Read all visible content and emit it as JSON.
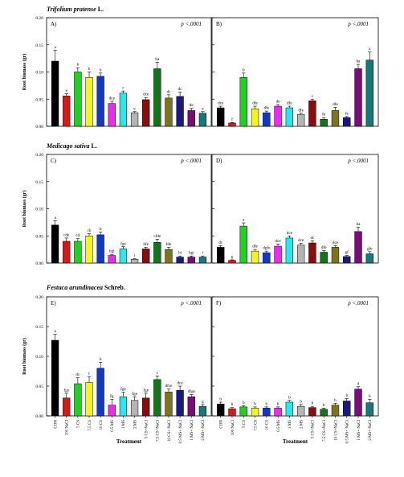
{
  "chart_data": [
    {
      "type": "bar",
      "panel": "A)",
      "species": "Trifolium pratense",
      "authority": "L.",
      "pvalue": "p <.0001",
      "ylabel": "Root biomass (gr)",
      "ylim": [
        0,
        0.2
      ],
      "yticks": [
        "0.00",
        "0.05",
        "0.10",
        "0.15",
        "0.20"
      ],
      "categories": [
        "CON",
        "100 NaCl",
        "5 CS",
        "7.5 CS",
        "10 CS",
        "0.5 MS",
        "1 MS",
        "2 MS",
        "5 CS+NaCl",
        "7.5 CS+NaCl",
        "10 CS+NaCl",
        "0.5 MS+NaCl",
        "1 MS+NaCl",
        "2 MS+NaCl"
      ],
      "values": [
        0.12,
        0.056,
        0.1,
        0.09,
        0.092,
        0.042,
        0.061,
        0.025,
        0.049,
        0.106,
        0.052,
        0.055,
        0.029,
        0.024
      ],
      "errors": [
        0.02,
        0.004,
        0.008,
        0.01,
        0.006,
        0.004,
        0.004,
        0.002,
        0.004,
        0.012,
        0.006,
        0.008,
        0.004,
        0.003
      ],
      "letters": [
        "a",
        "e",
        "b",
        "b",
        "b",
        "dce",
        "c",
        "e",
        "dce",
        "ba",
        "dc",
        "dc",
        "de",
        "e"
      ],
      "colors": [
        "#000000",
        "#d61a1a",
        "#22d022",
        "#f4f41e",
        "#1238c8",
        "#ec2bec",
        "#2ee4ee",
        "#b4b4b4",
        "#8a0c0c",
        "#11761a",
        "#80741a",
        "#1a1a7e",
        "#7a0c7a",
        "#167878"
      ]
    },
    {
      "type": "bar",
      "panel": "B)",
      "pvalue": "p <.0001",
      "ylim": [
        0,
        0.2
      ],
      "categories": [
        "CON",
        "100 NaCl",
        "5 CS",
        "7.5 CS",
        "10 CS",
        "0.5 MS",
        "1 MS",
        "2 MS",
        "5 CS+NaCl",
        "7.5 CS+NaCl",
        "10 CS+NaCl",
        "0.5 MS+NaCl",
        "1 MS+NaCl",
        "2 MS+NaCl"
      ],
      "values": [
        0.034,
        0.006,
        0.09,
        0.032,
        0.025,
        0.037,
        0.034,
        0.022,
        0.047,
        0.013,
        0.029,
        0.016,
        0.106,
        0.122
      ],
      "errors": [
        0.003,
        0.001,
        0.008,
        0.005,
        0.003,
        0.003,
        0.003,
        0.002,
        0.003,
        0.003,
        0.006,
        0.002,
        0.008,
        0.015
      ],
      "letters": [
        "dce",
        "f",
        "b",
        "dfe",
        "dfe",
        "de",
        "dfe",
        "dfe",
        "c",
        "fe",
        "dfe",
        "fe",
        "ba",
        "a"
      ],
      "colors": [
        "#000000",
        "#d61a1a",
        "#22d022",
        "#f4f41e",
        "#1238c8",
        "#ec2bec",
        "#2ee4ee",
        "#b4b4b4",
        "#8a0c0c",
        "#11761a",
        "#80741a",
        "#1a1a7e",
        "#7a0c7a",
        "#167878"
      ]
    },
    {
      "type": "bar",
      "panel": "C)",
      "species": "Medicago sativa",
      "authority": "L.",
      "pvalue": "p <.0001",
      "ylabel": "Root biomass (gr)",
      "ylim": [
        0,
        0.2
      ],
      "yticks": [
        "0.00",
        "0.05",
        "0.10",
        "0.15",
        "0.20"
      ],
      "categories": [
        "CON",
        "100 NaCl",
        "5 CS",
        "7.5 CS",
        "10 CS",
        "0.5 MS",
        "1 MS",
        "2 MS",
        "5 CS+NaCl",
        "7.5 CS+NaCl",
        "10 CS+NaCl",
        "0.5 MS+NaCl",
        "1 MS+NaCl",
        "2 MS+NaCl"
      ],
      "values": [
        0.07,
        0.04,
        0.04,
        0.05,
        0.052,
        0.014,
        0.026,
        0.007,
        0.026,
        0.038,
        0.025,
        0.011,
        0.011,
        0.011
      ],
      "errors": [
        0.008,
        0.006,
        0.005,
        0.004,
        0.005,
        0.002,
        0.004,
        0.001,
        0.003,
        0.006,
        0.004,
        0.002,
        0.002,
        0.002
      ],
      "letters": [
        "a",
        "cde",
        "cd",
        "cb",
        "b",
        "hgi",
        "fge",
        "i",
        "hfe",
        "cfde",
        "fde",
        "hi",
        "hgi",
        "i"
      ],
      "colors": [
        "#000000",
        "#d61a1a",
        "#22d022",
        "#f4f41e",
        "#1238c8",
        "#ec2bec",
        "#2ee4ee",
        "#b4b4b4",
        "#8a0c0c",
        "#11761a",
        "#80741a",
        "#1a1a7e",
        "#7a0c7a",
        "#167878"
      ]
    },
    {
      "type": "bar",
      "panel": "D)",
      "pvalue": "p <.0001",
      "ylim": [
        0,
        0.2
      ],
      "categories": [
        "CON",
        "100 NaCl",
        "5 CS",
        "7.5 CS",
        "10 CS",
        "0.5 MS",
        "1 MS",
        "2 MS",
        "5 CS+NaCl",
        "7.5 CS+NaCl",
        "10 CS+NaCl",
        "0.5 MS+NaCl",
        "1 MS+NaCl",
        "2 MS+NaCl"
      ],
      "values": [
        0.029,
        0.005,
        0.068,
        0.022,
        0.019,
        0.031,
        0.046,
        0.033,
        0.037,
        0.02,
        0.029,
        0.012,
        0.058,
        0.017
      ],
      "errors": [
        0.003,
        0.001,
        0.006,
        0.003,
        0.003,
        0.004,
        0.004,
        0.003,
        0.004,
        0.003,
        0.003,
        0.002,
        0.008,
        0.004
      ],
      "letters": [
        "dc",
        "g",
        "a",
        "dfe",
        "dgfe",
        "dce",
        "dce",
        "dce",
        "dc",
        "dfe",
        "dce",
        "gf",
        "ba",
        "gfe"
      ],
      "colors": [
        "#000000",
        "#d61a1a",
        "#22d022",
        "#f4f41e",
        "#1238c8",
        "#ec2bec",
        "#2ee4ee",
        "#b4b4b4",
        "#8a0c0c",
        "#11761a",
        "#80741a",
        "#1a1a7e",
        "#7a0c7a",
        "#167878"
      ]
    },
    {
      "type": "bar",
      "panel": "E)",
      "species": "Festuca arundinacea",
      "authority": "Schreb.",
      "pvalue": "p <.0001",
      "ylabel": "Root biomass (gr)",
      "xlabel": "Treatment",
      "ylim": [
        0,
        0.2
      ],
      "yticks": [
        "0.00",
        "0.05",
        "0.10",
        "0.15",
        "0.20"
      ],
      "categories": [
        "CON",
        "100 NaCl",
        "5 CS",
        "7.5 CS",
        "10 CS",
        "0.5 MS",
        "1 MS",
        "2 MS",
        "5 CS+NaCl",
        "7.5 CS+NaCl",
        "10 CS+NaCl",
        "0.5 MS+NaCl",
        "1 MS+NaCl",
        "2 MS+NaCl"
      ],
      "ticklabels": [
        "CON",
        "100 NaCl",
        "5 CS",
        "7.5 CS",
        "10 CS",
        "0.5 MS",
        "1 MS",
        "2 MS",
        "5 CS+NaCl",
        "7.5 CS+NaCl",
        "10 CS+ NaCl",
        "0.5 MS+ NaCl",
        "1 MS+ NaCl",
        "2 MS+ NaCl"
      ],
      "values": [
        0.127,
        0.03,
        0.054,
        0.056,
        0.08,
        0.018,
        0.032,
        0.026,
        0.03,
        0.061,
        0.04,
        0.043,
        0.032,
        0.016
      ],
      "errors": [
        0.01,
        0.008,
        0.01,
        0.01,
        0.01,
        0.01,
        0.008,
        0.006,
        0.008,
        0.006,
        0.005,
        0.007,
        0.004,
        0.003
      ],
      "letters": [
        "a",
        "fge",
        "dc",
        "c",
        "b",
        "fg",
        "fge",
        "fge",
        "fge",
        "c",
        "dfce",
        "dce",
        "dfge",
        "g"
      ],
      "colors": [
        "#000000",
        "#d61a1a",
        "#22d022",
        "#f4f41e",
        "#1238c8",
        "#ec2bec",
        "#2ee4ee",
        "#b4b4b4",
        "#8a0c0c",
        "#11761a",
        "#80741a",
        "#1a1a7e",
        "#7a0c7a",
        "#167878"
      ]
    },
    {
      "type": "bar",
      "panel": "F)",
      "pvalue": "p <.0001",
      "xlabel": "Treatment",
      "ylim": [
        0,
        0.2
      ],
      "categories": [
        "CON",
        "100 NaCl",
        "5 CS",
        "7.5 CS",
        "10 CS",
        "0.5 MS",
        "1 MS",
        "2 MS",
        "5 CS+NaCl",
        "7.5 CS+NaCl",
        "10 CS+NaCl",
        "0.5 MS+NaCl",
        "1 MS+NaCl",
        "2 MS+NaCl"
      ],
      "ticklabels": [
        "CON",
        "100 NaCl",
        "5 CS",
        "7.5 CS",
        "10 CS",
        "0.5 MS",
        "1 MS",
        "2 MS",
        "5 CS+NaCl",
        "7.5 CS+NaCl",
        "10 CS+NaCl",
        "0.5 MS+ NaCl",
        "1 MS+ NaCl",
        "2 MS+ NaCl"
      ],
      "values": [
        0.02,
        0.012,
        0.015,
        0.013,
        0.013,
        0.013,
        0.023,
        0.016,
        0.014,
        0.011,
        0.018,
        0.025,
        0.045,
        0.022
      ],
      "errors": [
        0.003,
        0.002,
        0.002,
        0.002,
        0.002,
        0.002,
        0.003,
        0.003,
        0.002,
        0.002,
        0.003,
        0.004,
        0.004,
        0.006
      ],
      "letters": [
        "b",
        "b",
        "b",
        "b",
        "b",
        "b",
        "b",
        "b",
        "b",
        "b",
        "b",
        "b",
        "a",
        "b"
      ],
      "colors": [
        "#000000",
        "#d61a1a",
        "#22d022",
        "#f4f41e",
        "#1238c8",
        "#ec2bec",
        "#2ee4ee",
        "#b4b4b4",
        "#8a0c0c",
        "#11761a",
        "#80741a",
        "#1a1a7e",
        "#7a0c7a",
        "#167878"
      ]
    }
  ]
}
